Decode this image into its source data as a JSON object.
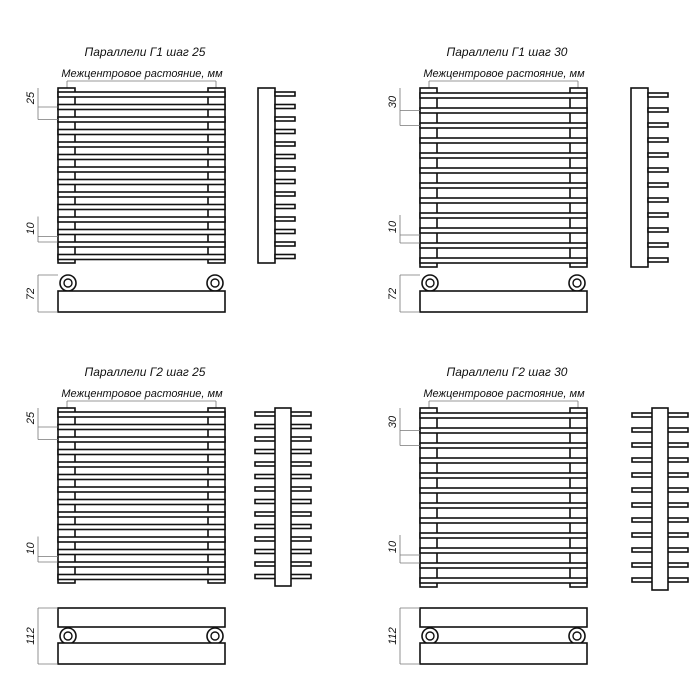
{
  "panels": [
    {
      "title": "Параллели Г1 шаг 25",
      "subtitle": "Межцентровое растояние, мм",
      "pitch_label": "25",
      "gap_label": "10",
      "depth_label": "72",
      "type": "G1",
      "tube_count": 14
    },
    {
      "title": "Параллели Г1 шаг 30",
      "subtitle": "Межцентровое растояние, мм",
      "pitch_label": "30",
      "gap_label": "10",
      "depth_label": "72",
      "type": "G1",
      "tube_count": 12
    },
    {
      "title": "Параллели Г2 шаг 25",
      "subtitle": "Межцентровое растояние, мм",
      "pitch_label": "25",
      "gap_label": "10",
      "depth_label": "112",
      "type": "G2",
      "tube_count": 14
    },
    {
      "title": "Параллели Г2 шаг 30",
      "subtitle": "Межцентровое растояние, мм",
      "pitch_label": "30",
      "gap_label": "10",
      "depth_label": "112",
      "type": "G2",
      "tube_count": 12
    }
  ],
  "colors": {
    "line": "#111111",
    "dim_line": "#777777",
    "background": "#ffffff"
  }
}
